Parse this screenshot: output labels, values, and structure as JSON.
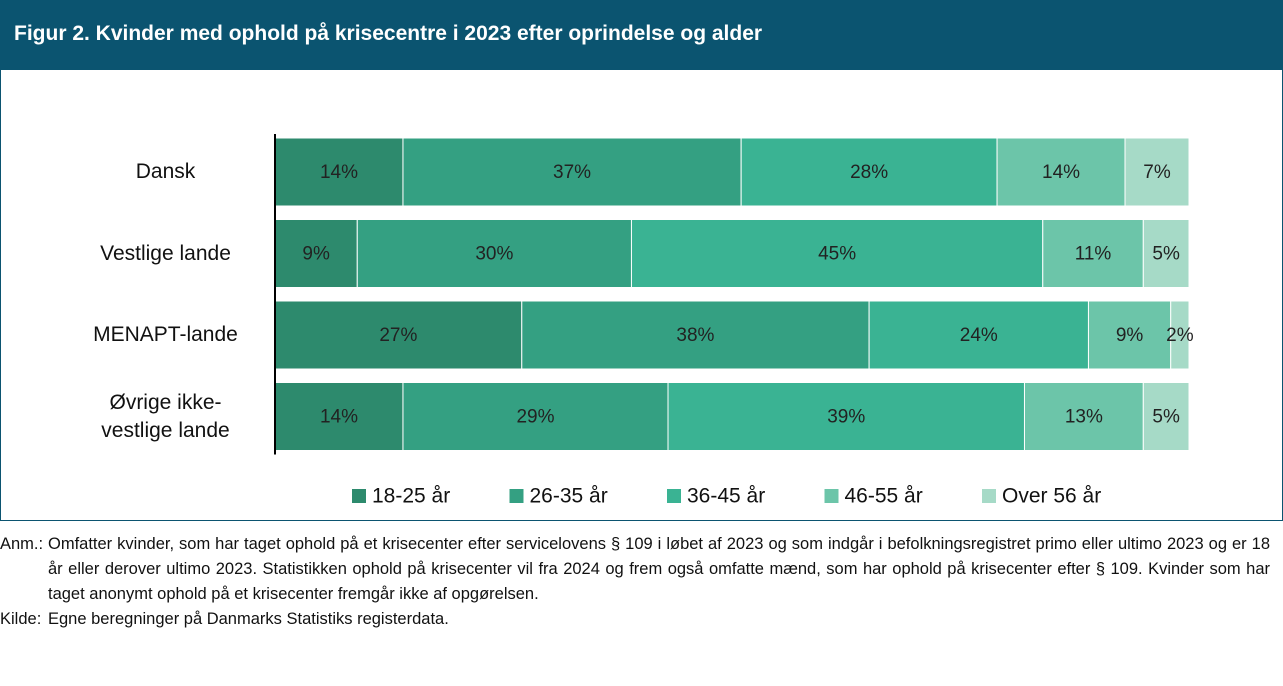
{
  "chart_data": {
    "type": "stacked_barh",
    "title": "Figur 2. Kvinder med ophold på krisecentre i 2023 efter oprindelse og alder",
    "categories": [
      "Dansk",
      "Vestlige lande",
      "MENAPT-lande",
      "Øvrige ikke-vestlige lande"
    ],
    "series": [
      {
        "name": "18-25 år",
        "color": "#2d8a6d",
        "values": [
          14,
          9,
          27,
          14
        ],
        "value_labels": [
          "14%",
          "9%",
          "27%",
          "14%"
        ]
      },
      {
        "name": "26-35 år",
        "color": "#34a082",
        "values": [
          37,
          30,
          38,
          29
        ],
        "value_labels": [
          "37%",
          "30%",
          "38%",
          "29%"
        ]
      },
      {
        "name": "36-45 år",
        "color": "#3ab393",
        "values": [
          28,
          45,
          24,
          39
        ],
        "value_labels": [
          "28%",
          "45%",
          "24%",
          "39%"
        ]
      },
      {
        "name": "46-55 år",
        "color": "#6cc5a9",
        "values": [
          14,
          11,
          9,
          13
        ],
        "value_labels": [
          "14%",
          "11%",
          "9%",
          "13%"
        ]
      },
      {
        "name": "Over 56 år",
        "color": "#a6dac7",
        "values": [
          7,
          5,
          2,
          5
        ],
        "value_labels": [
          "7%",
          "5%",
          "2%",
          "5%"
        ]
      }
    ]
  },
  "notes": [
    {
      "label": "Anm.:",
      "text": "Omfatter kvinder, som har taget ophold på et krisecenter efter servicelovens § 109 i løbet af 2023 og som indgår i befolkningsregistret primo eller ultimo 2023 og er 18 år eller derover ultimo 2023. Statistikken ophold på krisecenter vil fra 2024 og frem også omfatte mænd, som har ophold på krisecenter efter § 109. Kvinder som har taget anonymt ophold på et krisecenter fremgår ikke af opgørelsen."
    },
    {
      "label": "Kilde:",
      "text": "Egne beregninger på Danmarks Statistiks registerdata."
    }
  ]
}
